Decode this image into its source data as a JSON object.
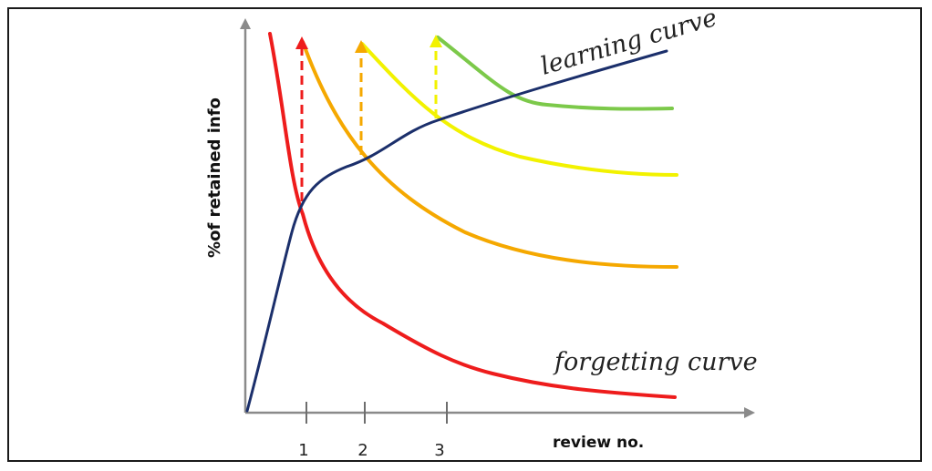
{
  "y_axis_label": "%of retained info",
  "x_axis_label": "review no.",
  "ticks": [
    "1",
    "2",
    "3"
  ],
  "labels": {
    "learning_curve": "learning curve",
    "forgetting_curve": "forgetting curve"
  },
  "colors": {
    "axis": "#8a8a8a",
    "learning": "#1b2f6b",
    "forgetting": "#ee1c1c",
    "review_1": "#f5a800",
    "review_2": "#f2f200",
    "review_3": "#7cc94a"
  }
}
